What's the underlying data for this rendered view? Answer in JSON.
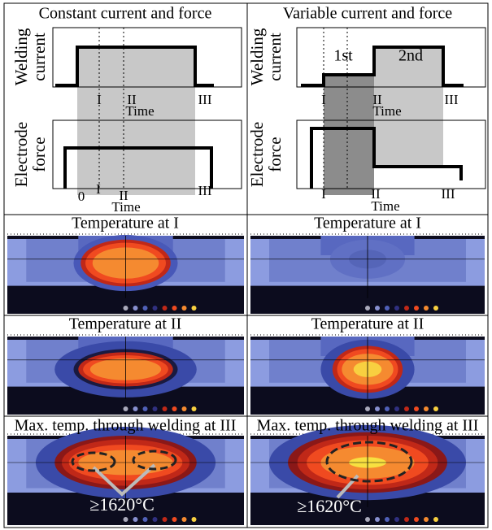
{
  "left": {
    "title": "Constant current and force",
    "current_y_label": [
      "Welding",
      "current"
    ],
    "current_marks": [
      "I",
      "II",
      "Time",
      "III"
    ],
    "force_y_label": [
      "Electrode",
      "force"
    ],
    "force_marks": [
      "0",
      "I",
      "II",
      "Time",
      "III"
    ],
    "rows": [
      "Temperature at I",
      "Temperature at II",
      "Max. temp. through welding at III"
    ],
    "annotation": "≥1620°C"
  },
  "right": {
    "title": "Variable current and force",
    "current_y_label": [
      "Welding",
      "current"
    ],
    "phase_labels": [
      "1st",
      "2nd"
    ],
    "current_marks": [
      "I",
      "II",
      "Time",
      "III"
    ],
    "force_y_label": [
      "Electrode",
      "force"
    ],
    "force_marks": [
      "I",
      "II",
      "Time",
      "III"
    ],
    "rows": [
      "Temperature at I",
      "Temperature at II",
      "Max. temp. through welding at III"
    ],
    "annotation": "≥1620°C"
  }
}
